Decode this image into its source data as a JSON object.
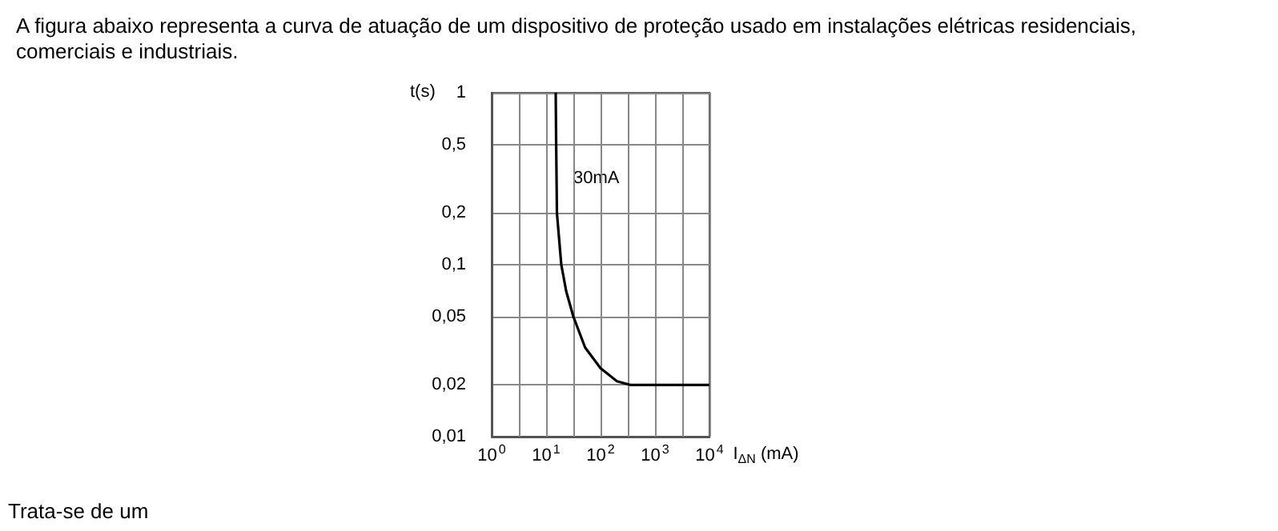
{
  "chart_data": {
    "type": "line",
    "title": "A figura abaixo representa a curva de atuação de um dispositivo de proteção usado em instalações elétricas residenciais, comerciais e industriais.",
    "xlabel": "I$_{ΔN}$ (mA)",
    "ylabel": "t(s)",
    "annotations": [
      "30mA",
      "Trata-se de um"
    ],
    "x": [
      15,
      15.3,
      15.8,
      19,
      23.4,
      31.6,
      52,
      100,
      200,
      350,
      10000
    ],
    "values": [
      1,
      0.5,
      0.2,
      0.1,
      0.07,
      0.05,
      0.033,
      0.025,
      0.021,
      0.02,
      0.02
    ],
    "color": "#000000",
    "line_style": "solid",
    "marker": "none",
    "log": "xy",
    "grid": true,
    "xlim": [
      1,
      10000
    ],
    "xticks": [
      {
        "value": 1,
        "label": "10$^{0}$"
      },
      {
        "value": 3.162,
        "label": null
      },
      {
        "value": 10,
        "label": "10$^{1}$"
      },
      {
        "value": 31.62,
        "label": null
      },
      {
        "value": 100,
        "label": "10$^{2}$"
      },
      {
        "value": 316.2,
        "label": null
      },
      {
        "value": 1000,
        "label": "10$^{3}$"
      },
      {
        "value": 3162,
        "label": null
      },
      {
        "value": 10000,
        "label": "10$^{4}$"
      }
    ],
    "ylim": [
      0.01,
      1
    ],
    "yticks": [
      {
        "value": 0.01,
        "label": "0,01"
      },
      {
        "value": 0.02,
        "label": "0,02"
      },
      {
        "value": 0.05,
        "label": "0,05"
      },
      {
        "value": 0.1,
        "label": "0,1"
      },
      {
        "value": 0.2,
        "label": "0,2"
      },
      {
        "value": 0.5,
        "label": "0,5"
      },
      {
        "value": 1,
        "label": "1"
      }
    ]
  }
}
